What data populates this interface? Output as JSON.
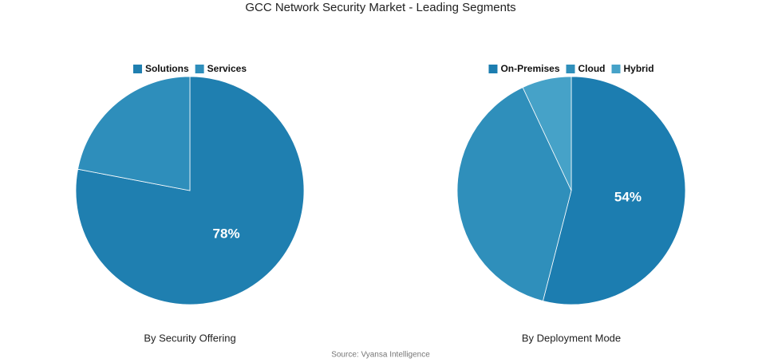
{
  "title": "GCC Network Security Market - Leading Segments",
  "source": "Source: Vyansa Intelligence",
  "chart_data": [
    {
      "type": "pie",
      "title": "By Security Offering",
      "categories": [
        "Solutions",
        "Services"
      ],
      "values": [
        78,
        22
      ],
      "value_labels": [
        "78%",
        null
      ],
      "colors": [
        "#1f7fb0",
        "#2e8ebb"
      ],
      "legend": "top"
    },
    {
      "type": "pie",
      "title": "By Deployment Mode",
      "categories": [
        "On-Premises",
        "Cloud",
        "Hybrid"
      ],
      "values": [
        54,
        39,
        7
      ],
      "value_labels": [
        "54%",
        null,
        null
      ],
      "colors": [
        "#1c7db0",
        "#2f8fbb",
        "#46a2c8"
      ],
      "legend": "top"
    }
  ]
}
